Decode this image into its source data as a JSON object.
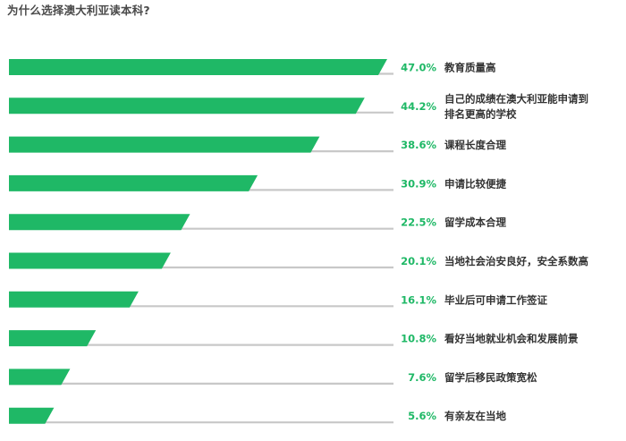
{
  "chart_data": {
    "type": "bar",
    "title": "为什么选择澳大利亚读本科?",
    "categories": [
      [
        "教育质量高"
      ],
      [
        "自己的成绩在澳大利亚能申请到",
        "排名更高的学校"
      ],
      [
        "课程长度合理"
      ],
      [
        "申请比较便捷"
      ],
      [
        "留学成本合理"
      ],
      [
        "当地社会治安良好，安全系数高"
      ],
      [
        "毕业后可申请工作签证"
      ],
      [
        "看好当地就业机会和发展前景"
      ],
      [
        "留学后移民政策宽松"
      ],
      [
        "有亲友在当地"
      ]
    ],
    "values": [
      47.0,
      44.2,
      38.6,
      30.9,
      22.5,
      20.1,
      16.1,
      10.8,
      7.6,
      5.6
    ],
    "value_labels": [
      "47.0%",
      "44.2%",
      "38.6%",
      "30.9%",
      "22.5%",
      "20.1%",
      "16.1%",
      "10.8%",
      "7.6%",
      "5.6%"
    ],
    "xlim": [
      0,
      50
    ],
    "grid": false,
    "colors": {
      "bar": "#1fb866",
      "track": "#c8c8c8",
      "value_text": "#1fb866",
      "label_text": "#333333",
      "title_text": "#4a4a4a"
    }
  }
}
